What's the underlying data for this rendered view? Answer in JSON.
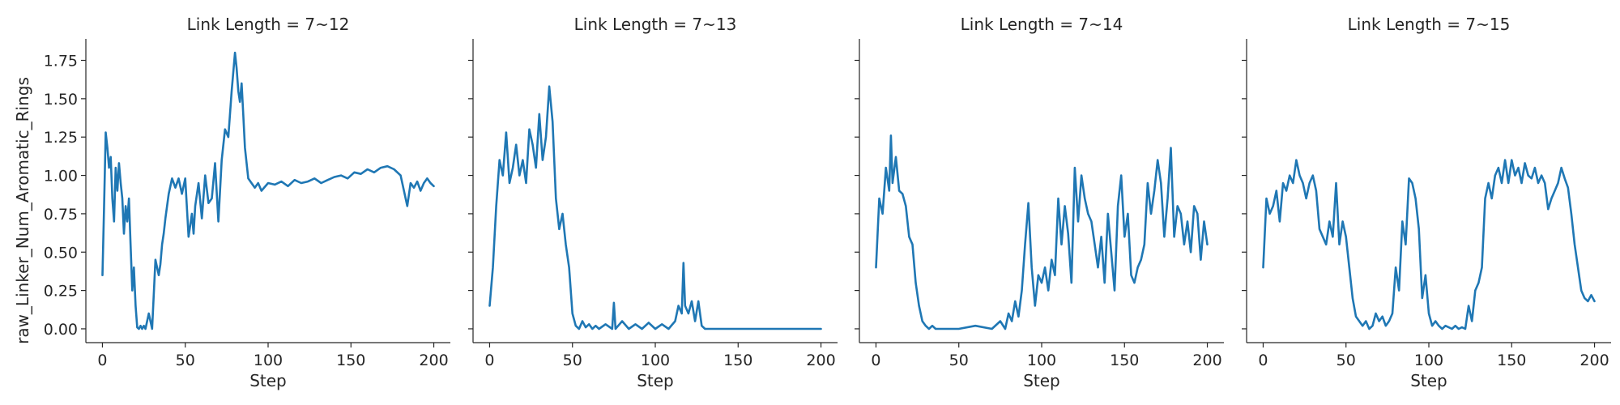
{
  "style": {
    "line_color": "#1f77b4",
    "text_color": "#262626"
  },
  "chart_data": {
    "type": "line",
    "layout": "facet-row",
    "ylabel": "raw_Linker_Num_Aromatic_Rings",
    "xlabel": "Step",
    "xlim": [
      -10,
      210
    ],
    "ylim": [
      -0.09,
      1.89
    ],
    "xticks": [
      0,
      50,
      100,
      150,
      200
    ],
    "yticks": [
      0.0,
      0.25,
      0.5,
      0.75,
      1.0,
      1.25,
      1.5,
      1.75
    ],
    "ytick_labels": [
      "0.00",
      "0.25",
      "0.50",
      "0.75",
      "1.00",
      "1.25",
      "1.50",
      "1.75"
    ],
    "grid": false,
    "panels": [
      {
        "title": "Link Length = 7~12",
        "x": [
          0,
          1,
          2,
          3,
          4,
          5,
          6,
          7,
          8,
          9,
          10,
          11,
          12,
          13,
          14,
          15,
          16,
          17,
          18,
          19,
          20,
          21,
          22,
          23,
          24,
          25,
          26,
          28,
          30,
          32,
          34,
          35,
          36,
          37,
          38,
          40,
          42,
          44,
          46,
          48,
          50,
          52,
          54,
          55,
          56,
          58,
          60,
          62,
          64,
          66,
          68,
          70,
          72,
          74,
          76,
          78,
          80,
          81,
          82,
          83,
          84,
          85,
          86,
          88,
          90,
          92,
          94,
          96,
          100,
          104,
          108,
          112,
          116,
          120,
          124,
          128,
          132,
          136,
          140,
          144,
          148,
          152,
          156,
          160,
          164,
          168,
          172,
          176,
          180,
          182,
          184,
          186,
          188,
          190,
          192,
          194,
          196,
          198,
          200
        ],
        "y": [
          0.35,
          0.8,
          1.28,
          1.18,
          1.05,
          1.12,
          0.85,
          0.7,
          1.05,
          0.9,
          1.08,
          0.95,
          0.85,
          0.62,
          0.8,
          0.7,
          0.85,
          0.55,
          0.25,
          0.4,
          0.15,
          0.01,
          0.0,
          0.02,
          0.0,
          0.02,
          0.0,
          0.1,
          0.0,
          0.45,
          0.35,
          0.42,
          0.55,
          0.62,
          0.72,
          0.88,
          0.98,
          0.92,
          0.98,
          0.88,
          0.98,
          0.6,
          0.75,
          0.62,
          0.8,
          0.95,
          0.72,
          1.0,
          0.82,
          0.85,
          1.08,
          0.7,
          1.1,
          1.3,
          1.25,
          1.55,
          1.8,
          1.7,
          1.55,
          1.48,
          1.6,
          1.4,
          1.18,
          0.98,
          0.95,
          0.92,
          0.95,
          0.9,
          0.95,
          0.94,
          0.96,
          0.93,
          0.97,
          0.95,
          0.96,
          0.98,
          0.95,
          0.97,
          0.99,
          1.0,
          0.98,
          1.02,
          1.01,
          1.04,
          1.02,
          1.05,
          1.06,
          1.04,
          1.0,
          0.9,
          0.8,
          0.95,
          0.92,
          0.96,
          0.9,
          0.95,
          0.98,
          0.95,
          0.93
        ]
      },
      {
        "title": "Link Length = 7~13",
        "x": [
          0,
          2,
          4,
          6,
          8,
          10,
          12,
          14,
          16,
          18,
          20,
          22,
          24,
          26,
          28,
          30,
          32,
          34,
          36,
          38,
          40,
          42,
          44,
          46,
          48,
          50,
          52,
          54,
          56,
          58,
          60,
          62,
          64,
          66,
          70,
          74,
          75,
          76,
          80,
          84,
          88,
          92,
          96,
          100,
          104,
          108,
          112,
          114,
          116,
          117,
          118,
          120,
          122,
          124,
          126,
          128,
          130,
          140,
          150,
          160,
          170,
          180,
          190,
          200
        ],
        "y": [
          0.15,
          0.4,
          0.8,
          1.1,
          1.0,
          1.28,
          0.95,
          1.05,
          1.2,
          1.0,
          1.1,
          0.95,
          1.3,
          1.2,
          1.05,
          1.4,
          1.1,
          1.25,
          1.58,
          1.35,
          0.85,
          0.65,
          0.75,
          0.55,
          0.4,
          0.1,
          0.02,
          0.0,
          0.05,
          0.01,
          0.03,
          0.0,
          0.02,
          0.0,
          0.03,
          0.0,
          0.17,
          0.0,
          0.05,
          0.0,
          0.03,
          0.0,
          0.04,
          0.0,
          0.03,
          0.0,
          0.05,
          0.15,
          0.1,
          0.43,
          0.15,
          0.1,
          0.18,
          0.05,
          0.18,
          0.02,
          0.0,
          0.0,
          0.0,
          0.0,
          0.0,
          0.0,
          0.0,
          0.0
        ]
      },
      {
        "title": "Link Length = 7~14",
        "x": [
          0,
          2,
          4,
          6,
          8,
          9,
          10,
          12,
          14,
          16,
          18,
          20,
          22,
          24,
          26,
          28,
          30,
          32,
          34,
          36,
          40,
          50,
          60,
          70,
          75,
          78,
          80,
          82,
          84,
          86,
          88,
          90,
          92,
          94,
          96,
          98,
          100,
          102,
          104,
          106,
          108,
          110,
          112,
          114,
          116,
          118,
          120,
          122,
          124,
          126,
          128,
          130,
          132,
          134,
          136,
          138,
          140,
          142,
          144,
          146,
          148,
          150,
          152,
          154,
          156,
          158,
          160,
          162,
          164,
          166,
          168,
          170,
          172,
          174,
          176,
          178,
          180,
          182,
          184,
          186,
          188,
          190,
          192,
          194,
          196,
          198,
          200
        ],
        "y": [
          0.4,
          0.85,
          0.75,
          1.05,
          0.9,
          1.26,
          0.95,
          1.12,
          0.9,
          0.88,
          0.8,
          0.6,
          0.55,
          0.3,
          0.15,
          0.05,
          0.02,
          0.0,
          0.02,
          0.0,
          0.0,
          0.0,
          0.02,
          0.0,
          0.05,
          0.0,
          0.1,
          0.05,
          0.18,
          0.08,
          0.25,
          0.55,
          0.82,
          0.4,
          0.15,
          0.35,
          0.3,
          0.4,
          0.25,
          0.45,
          0.35,
          0.85,
          0.55,
          0.8,
          0.62,
          0.3,
          1.05,
          0.7,
          1.0,
          0.85,
          0.75,
          0.7,
          0.55,
          0.4,
          0.6,
          0.3,
          0.75,
          0.5,
          0.25,
          0.8,
          1.0,
          0.6,
          0.75,
          0.35,
          0.3,
          0.4,
          0.45,
          0.55,
          0.95,
          0.75,
          0.9,
          1.1,
          0.95,
          0.6,
          0.85,
          1.18,
          0.6,
          0.8,
          0.75,
          0.55,
          0.7,
          0.5,
          0.8,
          0.75,
          0.45,
          0.7,
          0.55
        ]
      },
      {
        "title": "Link Length = 7~15",
        "x": [
          0,
          2,
          4,
          6,
          8,
          10,
          12,
          14,
          16,
          18,
          20,
          22,
          24,
          26,
          28,
          30,
          32,
          34,
          36,
          38,
          40,
          42,
          44,
          46,
          48,
          50,
          52,
          54,
          56,
          58,
          60,
          62,
          64,
          66,
          68,
          70,
          72,
          74,
          76,
          78,
          80,
          82,
          84,
          86,
          88,
          90,
          92,
          94,
          96,
          98,
          100,
          102,
          104,
          106,
          108,
          110,
          112,
          114,
          116,
          118,
          120,
          122,
          124,
          126,
          128,
          130,
          132,
          134,
          136,
          138,
          140,
          142,
          144,
          146,
          148,
          150,
          152,
          154,
          156,
          158,
          160,
          162,
          164,
          166,
          168,
          170,
          172,
          174,
          176,
          178,
          180,
          182,
          184,
          186,
          188,
          190,
          192,
          194,
          196,
          198,
          200
        ],
        "y": [
          0.4,
          0.85,
          0.75,
          0.8,
          0.9,
          0.7,
          0.95,
          0.9,
          1.0,
          0.95,
          1.1,
          1.0,
          0.95,
          0.85,
          0.95,
          1.0,
          0.9,
          0.65,
          0.6,
          0.55,
          0.7,
          0.6,
          0.95,
          0.55,
          0.7,
          0.6,
          0.4,
          0.2,
          0.08,
          0.05,
          0.02,
          0.05,
          0.0,
          0.02,
          0.1,
          0.05,
          0.08,
          0.02,
          0.05,
          0.1,
          0.4,
          0.25,
          0.7,
          0.55,
          0.98,
          0.95,
          0.85,
          0.65,
          0.2,
          0.35,
          0.1,
          0.02,
          0.05,
          0.02,
          0.0,
          0.02,
          0.01,
          0.0,
          0.02,
          0.0,
          0.01,
          0.0,
          0.15,
          0.05,
          0.25,
          0.3,
          0.4,
          0.85,
          0.95,
          0.85,
          1.0,
          1.05,
          0.95,
          1.1,
          0.95,
          1.1,
          1.0,
          1.05,
          0.95,
          1.08,
          1.0,
          0.98,
          1.05,
          0.95,
          1.0,
          0.95,
          0.78,
          0.85,
          0.9,
          0.95,
          1.05,
          0.98,
          0.92,
          0.75,
          0.55,
          0.4,
          0.25,
          0.2,
          0.18,
          0.22,
          0.18
        ]
      }
    ]
  }
}
